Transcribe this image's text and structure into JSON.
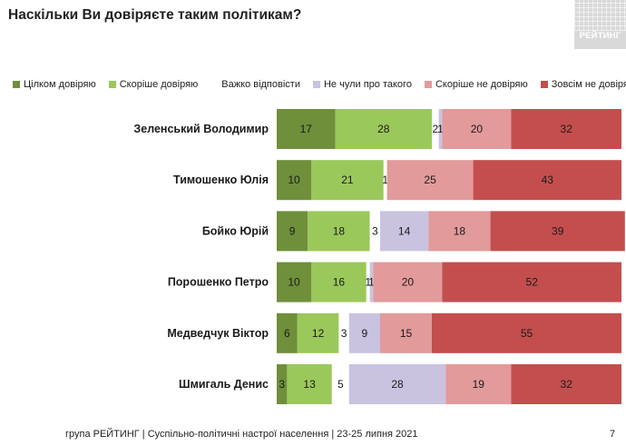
{
  "page": {
    "title": "Наскільки Ви довіряєте таким політикам?",
    "logo_text": "РЕЙТИНГ",
    "footer": "група РЕЙТИНГ | Суспільно-політичні настрої населення  | 23-25 липня 2021",
    "page_number": "7"
  },
  "chart_data": {
    "type": "bar",
    "orientation": "horizontal",
    "stacked": true,
    "title": "Наскільки Ви довіряєте таким політикам?",
    "xlim": [
      0,
      100
    ],
    "grid": false,
    "legend_position": "top",
    "categories": [
      "Зеленський Володимир",
      "Тимошенко Юлія",
      "Бойко Юрій",
      "Порошенко Петро",
      "Медведчук Віктор",
      "Шмигаль Денис"
    ],
    "series": [
      {
        "name": "Цілком довіряю",
        "color": "#6f8f3b",
        "values": [
          17,
          10,
          9,
          10,
          6,
          3
        ]
      },
      {
        "name": "Скоріше довіряю",
        "color": "#9bc85a",
        "values": [
          28,
          21,
          18,
          16,
          12,
          13
        ]
      },
      {
        "name": "Важко відповісти",
        "color": "#ffffff",
        "values": [
          2,
          1,
          3,
          1,
          3,
          5
        ]
      },
      {
        "name": "Не чули про такого",
        "color": "#c9c3e0",
        "values": [
          1,
          0,
          14,
          1,
          9,
          28
        ]
      },
      {
        "name": "Скоріше не довіряю",
        "color": "#e29a9a",
        "values": [
          20,
          25,
          18,
          20,
          15,
          19
        ]
      },
      {
        "name": "Зовсім не довіряю",
        "color": "#c44e4e",
        "values": [
          32,
          43,
          39,
          52,
          55,
          32
        ]
      }
    ],
    "data_labels": [
      [
        "17",
        "28",
        "2",
        "1",
        "20",
        "32"
      ],
      [
        "10",
        "21",
        "1",
        "",
        "25",
        "43"
      ],
      [
        "9",
        "18",
        "3",
        "14",
        "18",
        "39"
      ],
      [
        "10",
        "16",
        "1",
        "1",
        "20",
        "52"
      ],
      [
        "6",
        "12",
        "3",
        "9",
        "15",
        "55"
      ],
      [
        "3",
        "13",
        "5",
        "28",
        "19",
        "32"
      ]
    ]
  }
}
